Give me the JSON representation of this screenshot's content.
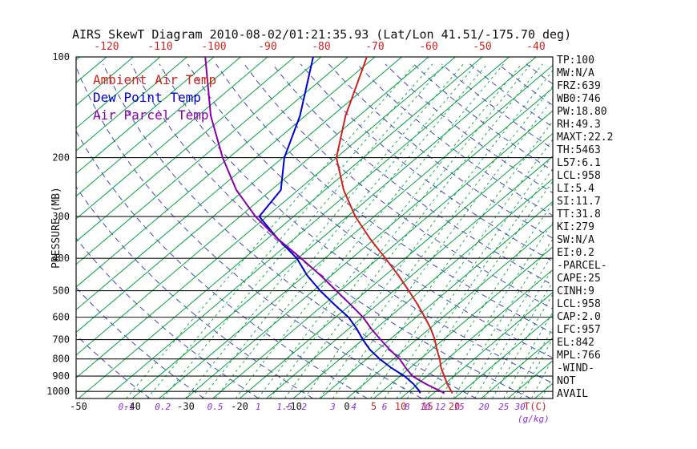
{
  "title": "AIRS SkewT Diagram 2010-08-02/01:21:35.93 (Lat/Lon 41.51/-175.70 deg)",
  "colors": {
    "isotherm": "#00a33e",
    "dry_adiabat": "#4646aa",
    "mixing_label": "#8a2be2",
    "ambient": "#cc2222",
    "dewpoint": "#0000cc",
    "parcel": "#8800aa",
    "axis": "#111111"
  },
  "legend": [
    {
      "label": "Ambient Air Temp",
      "color": "#cc2222"
    },
    {
      "label": "Dew Point Temp",
      "color": "#0000cc"
    },
    {
      "label": "Air Parcel Temp",
      "color": "#8800aa"
    }
  ],
  "axes": {
    "pressure_label": "PRESSURE (MB)",
    "pressure_ticks": [
      100,
      200,
      300,
      400,
      500,
      600,
      700,
      800,
      900,
      1000
    ],
    "top_temp_ticks": [
      -120,
      -110,
      -100,
      -90,
      -80,
      -70,
      -60,
      -50,
      -40
    ],
    "bottom_temp_ticks_black": [
      -50,
      -40,
      -30,
      -20,
      -10,
      0
    ],
    "bottom_temp_ticks_red": [
      5,
      10,
      15,
      20
    ],
    "mixing_ratio_labels": [
      0.1,
      0.2,
      0.5,
      1,
      1.5,
      2,
      3,
      4,
      6,
      8,
      10,
      12,
      15,
      20,
      25,
      30
    ],
    "temp_unit_label": "T(C)",
    "mixing_unit_label": "(g/kg)"
  },
  "stats_panel": [
    "TP:100",
    "MW:N/A",
    "FRZ:639",
    "WB0:746",
    "PW:18.80",
    "RH:49.3",
    "MAXT:22.2",
    "TH:5463",
    "L57:6.1",
    "LCL:958",
    "LI:5.4",
    "SI:11.7",
    "TT:31.8",
    "KI:279",
    "SW:N/A",
    "EI:0.2",
    "-PARCEL-",
    "CAPE:25",
    "CINH:9",
    "LCL:958",
    "CAP:2.0",
    "LFC:957",
    "EL:842",
    "MPL:766",
    "-WIND-",
    "NOT",
    "AVAIL"
  ],
  "chart_data": {
    "type": "line",
    "chart_kind": "skewt-log-p",
    "title": "AIRS SkewT Diagram 2010-08-02/01:21:35.93 (Lat/Lon 41.51/-175.70 deg)",
    "xlabel": "T(C)",
    "ylabel": "PRESSURE (MB)",
    "pressure_scale": "log",
    "pressure_range_mb": [
      100,
      1050
    ],
    "surface_temp_range_c": [
      -50,
      38
    ],
    "grid": {
      "skewed_isotherms": true,
      "legend_position": "top-left inside plot"
    },
    "isotherms_c": {
      "min": -130,
      "max": 40,
      "step": 5
    },
    "dry_adiabats_theta_c": {
      "min": -40,
      "max": 190,
      "step": 10
    },
    "mixing_ratio_lines_gkg": [
      0.1,
      0.15,
      0.2,
      0.3,
      0.4,
      0.5,
      0.7,
      1,
      1.2,
      1.5,
      2,
      2.5,
      3,
      4,
      5,
      6,
      7,
      8,
      10,
      12,
      14,
      16,
      18,
      20,
      22,
      25,
      28,
      30,
      34,
      38
    ],
    "series": [
      {
        "name": "Ambient Air Temp",
        "color": "#cc2222",
        "units": [
          "pressure_mb",
          "temp_c"
        ],
        "points": [
          [
            1013,
            18.5
          ],
          [
            1000,
            17.9
          ],
          [
            950,
            15.5
          ],
          [
            900,
            13.2
          ],
          [
            850,
            10.8
          ],
          [
            800,
            8.6
          ],
          [
            750,
            6.0
          ],
          [
            700,
            3.4
          ],
          [
            650,
            0.3
          ],
          [
            600,
            -3.4
          ],
          [
            550,
            -7.5
          ],
          [
            500,
            -12.2
          ],
          [
            450,
            -17.5
          ],
          [
            400,
            -23.7
          ],
          [
            350,
            -30.8
          ],
          [
            300,
            -38.5
          ],
          [
            250,
            -46.5
          ],
          [
            200,
            -55.0
          ],
          [
            150,
            -62.5
          ],
          [
            100,
            -71.5
          ]
        ]
      },
      {
        "name": "Dew Point Temp",
        "color": "#0000cc",
        "units": [
          "pressure_mb",
          "temp_c"
        ],
        "points": [
          [
            1013,
            12.5
          ],
          [
            1000,
            12.0
          ],
          [
            950,
            9.2
          ],
          [
            900,
            5.8
          ],
          [
            850,
            1.5
          ],
          [
            800,
            -2.6
          ],
          [
            750,
            -6.5
          ],
          [
            700,
            -10.0
          ],
          [
            650,
            -13.5
          ],
          [
            600,
            -17.6
          ],
          [
            550,
            -23.0
          ],
          [
            500,
            -28.7
          ],
          [
            450,
            -34.5
          ],
          [
            400,
            -40.2
          ],
          [
            350,
            -48.0
          ],
          [
            300,
            -56.4
          ],
          [
            250,
            -58.2
          ],
          [
            200,
            -64.7
          ],
          [
            150,
            -71.0
          ],
          [
            100,
            -81.5
          ]
        ]
      },
      {
        "name": "Air Parcel Temp",
        "color": "#8800aa",
        "units": [
          "pressure_mb",
          "temp_c"
        ],
        "points": [
          [
            1013,
            17.0
          ],
          [
            1000,
            16.0
          ],
          [
            950,
            11.5
          ],
          [
            900,
            7.3
          ],
          [
            850,
            4.2
          ],
          [
            800,
            1.1
          ],
          [
            750,
            -2.8
          ],
          [
            700,
            -6.7
          ],
          [
            650,
            -10.8
          ],
          [
            600,
            -14.9
          ],
          [
            550,
            -20.0
          ],
          [
            500,
            -25.7
          ],
          [
            450,
            -32.0
          ],
          [
            400,
            -39.4
          ],
          [
            350,
            -48.0
          ],
          [
            300,
            -57.1
          ],
          [
            250,
            -66.5
          ],
          [
            200,
            -76.2
          ],
          [
            150,
            -87.6
          ],
          [
            100,
            -101.6
          ]
        ]
      }
    ]
  }
}
